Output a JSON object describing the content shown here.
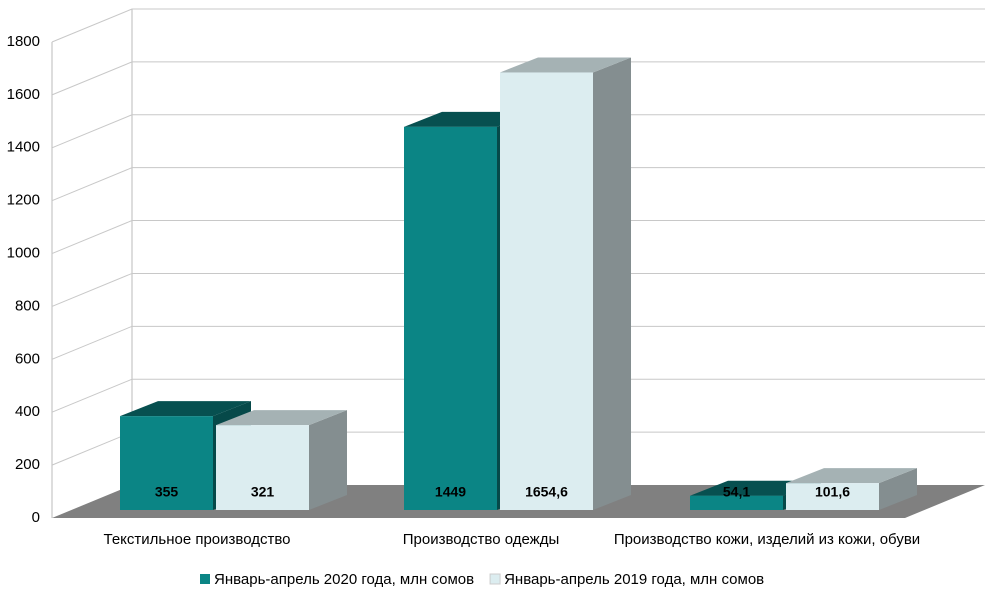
{
  "chart_data": {
    "type": "bar3d",
    "categories": [
      "Текстильное производство",
      "Производство одежды",
      "Производство кожи, изделий из кожи, обуви"
    ],
    "series": [
      {
        "name": "Январь-апрель 2020 года, млн сомов",
        "color": "#0b8585",
        "values": [
          355,
          1449,
          54.1
        ],
        "value_labels": [
          "355",
          "1449",
          "54,1"
        ]
      },
      {
        "name": "Январь-апрель 2019 года, млн сомов",
        "color": "#dcedf0",
        "values": [
          321,
          1654.6,
          101.6
        ],
        "value_labels": [
          "321",
          "1654,6",
          "101,6"
        ]
      }
    ],
    "ylim": [
      0,
      1800
    ],
    "yticks": [
      0,
      200,
      400,
      600,
      800,
      1000,
      1200,
      1400,
      1600,
      1800
    ],
    "grid": true,
    "legend": "bottom"
  }
}
